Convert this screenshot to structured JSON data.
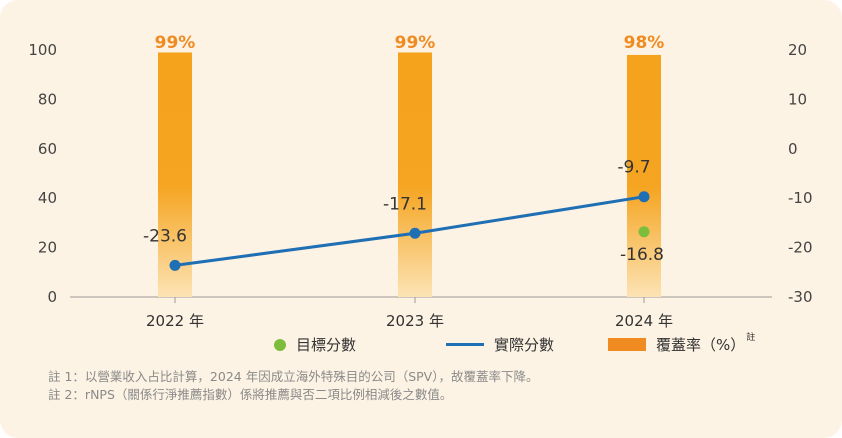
{
  "chart_data": {
    "type": "bar+line",
    "categories": [
      "2022 年",
      "2023 年",
      "2024 年"
    ],
    "left_axis": {
      "ylim": [
        0,
        100
      ],
      "ticks": [
        "100",
        "80",
        "60",
        "40",
        "20",
        "0"
      ],
      "tick_values": [
        100,
        80,
        60,
        40,
        20,
        0
      ]
    },
    "right_axis": {
      "ylim": [
        -30,
        20
      ],
      "ticks": [
        "20",
        "10",
        "0",
        "-10",
        "-20",
        "-30"
      ],
      "tick_values": [
        20,
        10,
        0,
        -10,
        -20,
        -30
      ]
    },
    "series": [
      {
        "name": "覆蓋率（%）",
        "kind": "bar",
        "axis": "left",
        "values": [
          99,
          99,
          98
        ],
        "labels": [
          "99%",
          "99%",
          "98%"
        ]
      },
      {
        "name": "實際分數",
        "kind": "line",
        "axis": "right",
        "values": [
          -23.6,
          -17.1,
          -9.7
        ],
        "labels": [
          "-23.6",
          "-17.1",
          "-9.7"
        ]
      },
      {
        "name": "目標分數",
        "kind": "scatter",
        "axis": "right",
        "values": [
          null,
          null,
          -16.8
        ],
        "labels": [
          "",
          "",
          "-16.8"
        ]
      }
    ],
    "colors": {
      "bar": "#f5a21c",
      "bar_label": "#f08b22",
      "line": "#1f6fb5",
      "target": "#7cbe3c",
      "axis_text": "#444444"
    }
  },
  "legend": {
    "target": "目標分數",
    "actual": "實際分數",
    "coverage": "覆蓋率（%）",
    "coverage_note": "註"
  },
  "notes": [
    "註 1：以營業收入占比計算，2024 年因成立海外特殊目的公司（SPV），故覆蓋率下降。",
    "註 2：rNPS（關係行淨推薦指數）係將推薦與否二項比例相減後之數值。"
  ]
}
